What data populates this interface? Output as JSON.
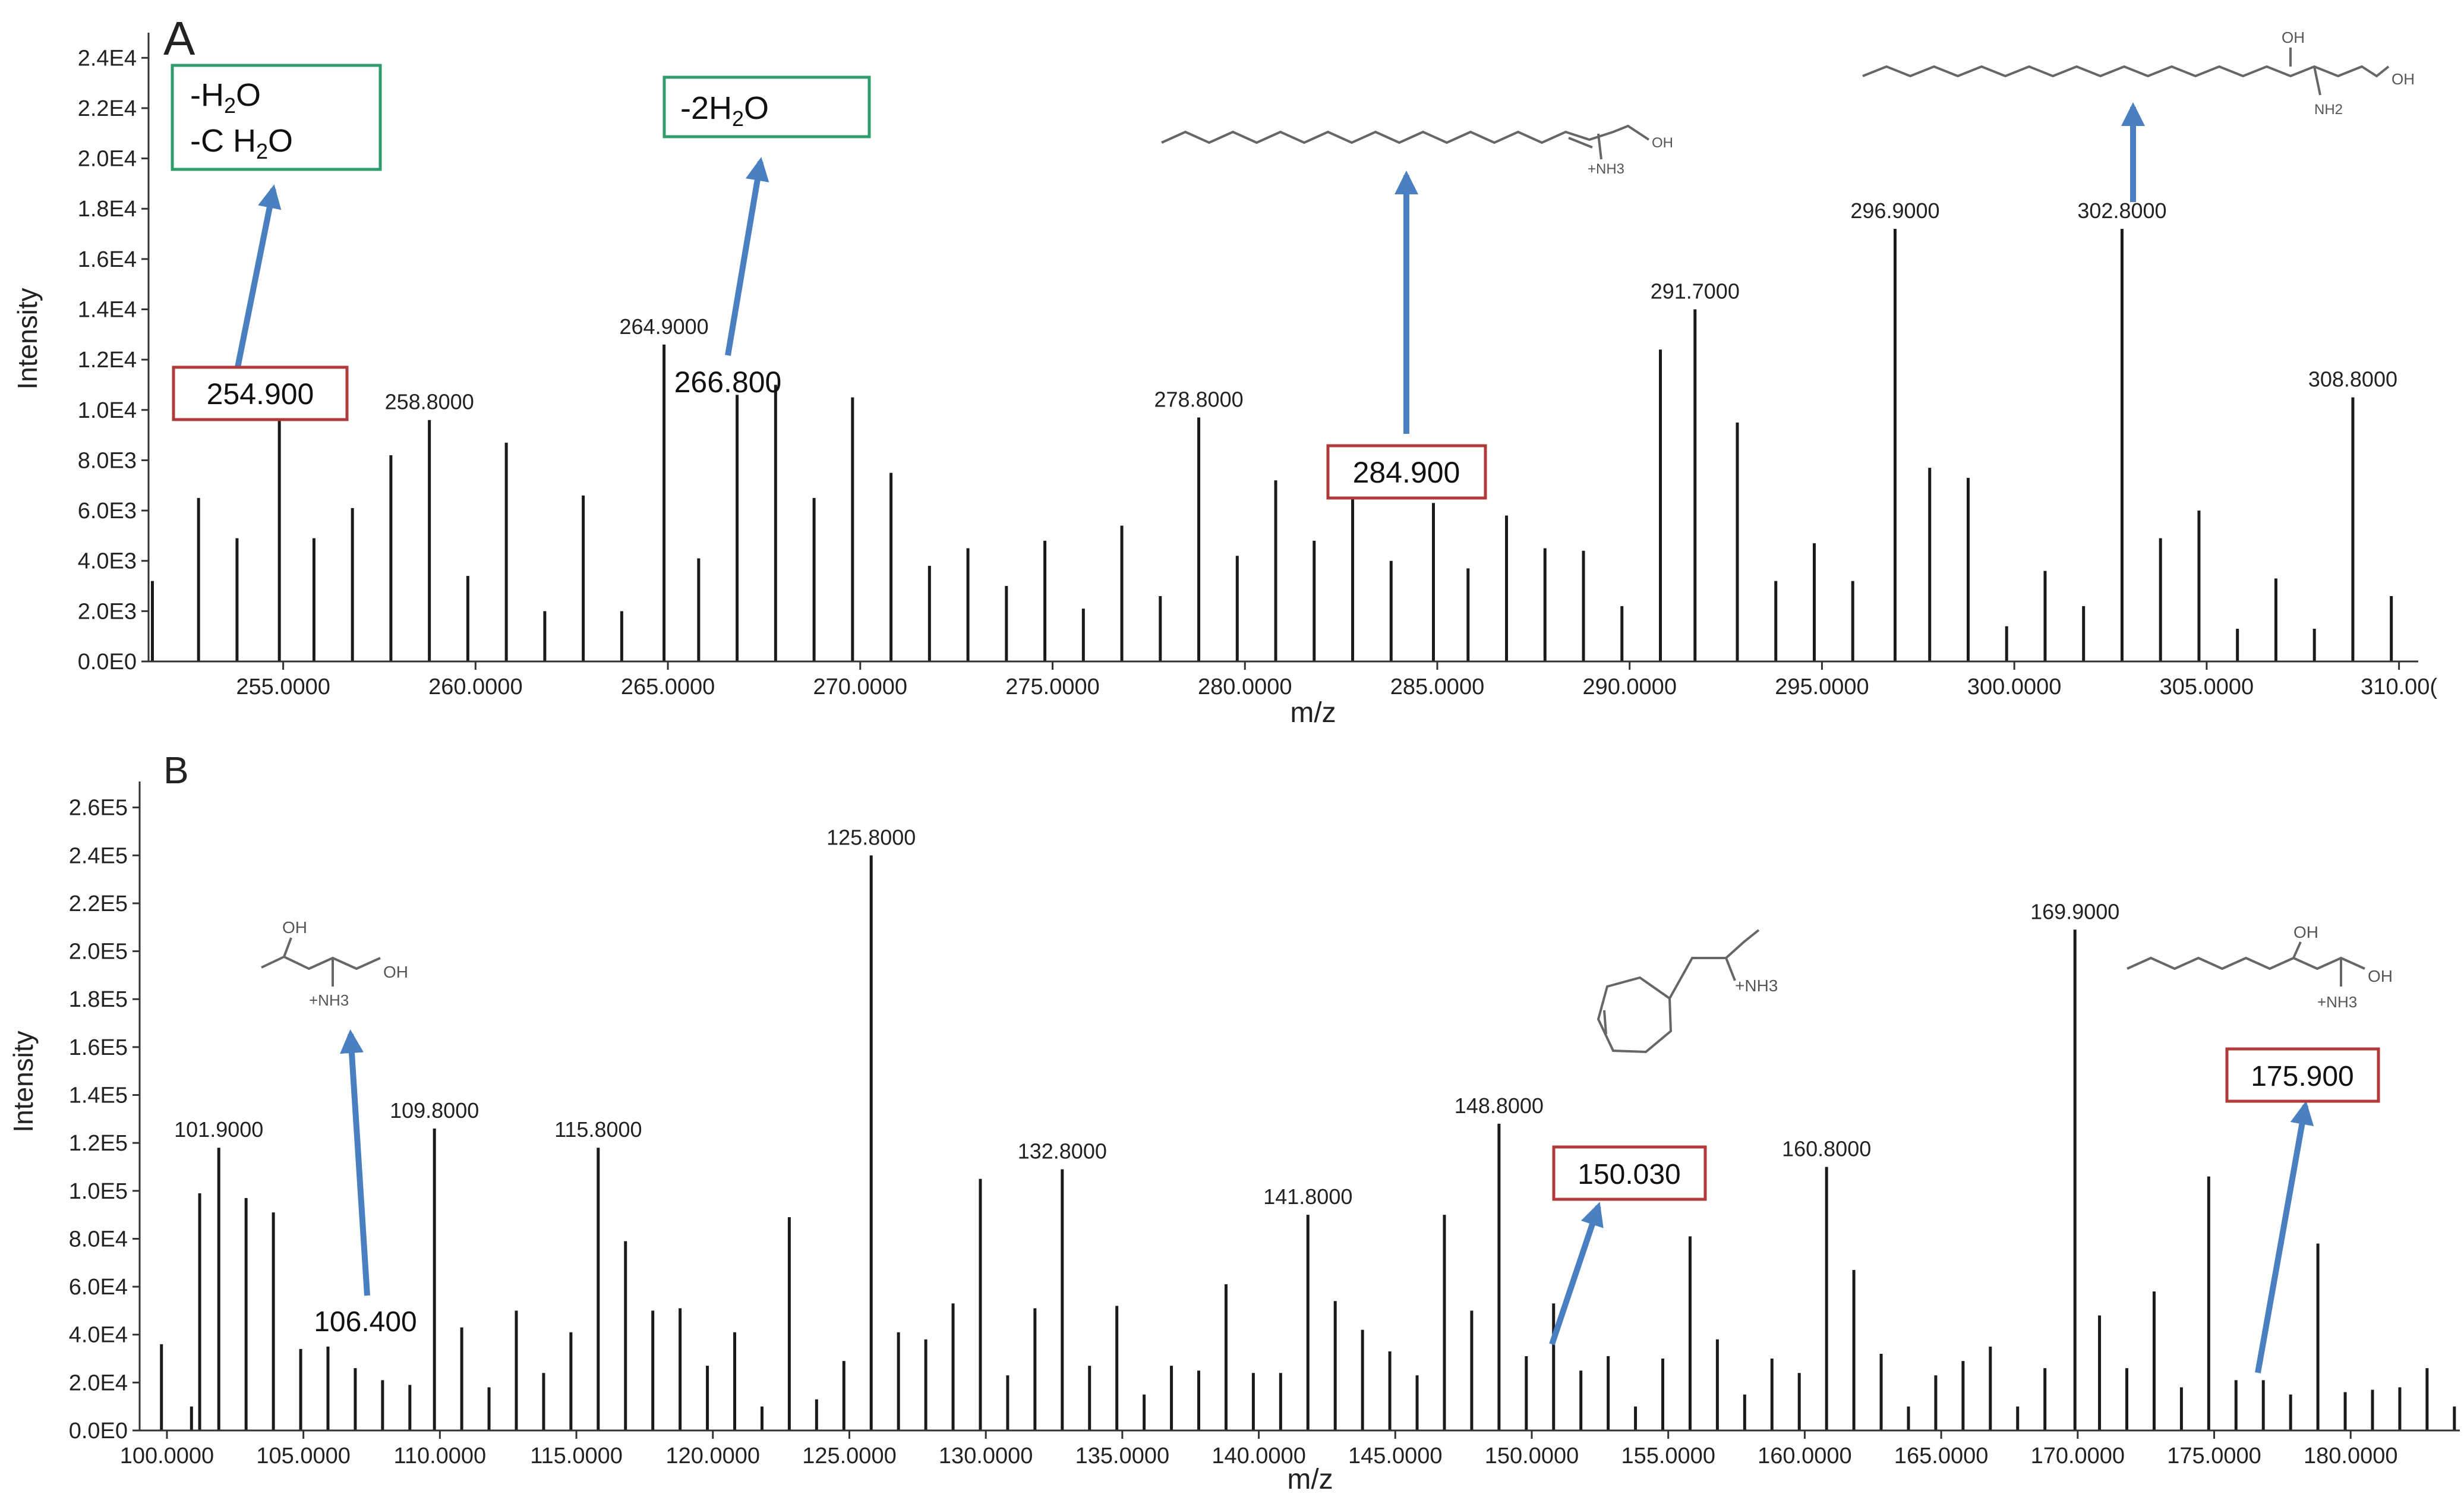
{
  "colors": {
    "axis": "#333333",
    "bar": "#1a1a1a",
    "arrow": "#4a7fc1",
    "loss_box": "#2e9c6b",
    "ion_box": "#b03a3a",
    "structure": "#666666"
  },
  "chart_data": [
    {
      "panel": "A",
      "type": "bar",
      "subtype": "mass-spectrum stick plot",
      "xlabel": "m/z",
      "ylabel": "Intensity",
      "xlim": [
        251.5,
        310.5
      ],
      "ylim": [
        0,
        24000
      ],
      "xticks": [
        255,
        260,
        265,
        270,
        275,
        280,
        285,
        290,
        295,
        300,
        305,
        310
      ],
      "xtick_labels": [
        "255.0000",
        "260.0000",
        "265.0000",
        "270.0000",
        "275.0000",
        "280.0000",
        "285.0000",
        "290.0000",
        "295.0000",
        "300.0000",
        "305.0000",
        "310.00("
      ],
      "yticks": [
        0,
        2000,
        4000,
        6000,
        8000,
        10000,
        12000,
        14000,
        16000,
        18000,
        20000,
        22000,
        24000
      ],
      "ytick_labels": [
        "0.0E0",
        "2.0E3",
        "4.0E3",
        "6.0E3",
        "8.0E3",
        "1.0E4",
        "1.2E4",
        "1.4E4",
        "1.6E4",
        "1.8E4",
        "2.0E4",
        "2.2E4",
        "2.4E4"
      ],
      "peaks": {
        "x": [
          251.6,
          252.8,
          253.8,
          254.9,
          255.8,
          256.8,
          257.8,
          258.8,
          259.8,
          260.8,
          261.8,
          262.8,
          263.8,
          264.9,
          265.8,
          266.8,
          267.8,
          268.8,
          269.8,
          270.8,
          271.8,
          272.8,
          273.8,
          274.8,
          275.8,
          276.8,
          277.8,
          278.8,
          279.8,
          280.8,
          281.8,
          282.8,
          283.8,
          284.9,
          285.8,
          286.8,
          287.8,
          288.8,
          289.8,
          290.8,
          291.7,
          292.8,
          293.8,
          294.8,
          295.8,
          296.9,
          297.8,
          298.8,
          299.8,
          300.8,
          301.8,
          302.8,
          303.8,
          304.8,
          305.8,
          306.8,
          307.8,
          308.8,
          309.8
        ],
        "y": [
          3200,
          6500,
          4900,
          9800,
          4900,
          6100,
          8200,
          9600,
          3400,
          8700,
          2000,
          6600,
          2000,
          12600,
          4100,
          10600,
          11000,
          6500,
          10500,
          7500,
          3800,
          4500,
          3000,
          4800,
          2100,
          5400,
          2600,
          9700,
          4200,
          7200,
          4800,
          6500,
          4000,
          6300,
          3700,
          5800,
          4500,
          4400,
          2200,
          12400,
          14000,
          9500,
          3200,
          4700,
          3200,
          17200,
          7700,
          7300,
          1400,
          3600,
          2200,
          17200,
          4900,
          6000,
          1300,
          3300,
          1300,
          10500,
          2600
        ]
      },
      "labeled_peaks": [
        {
          "x": 258.8,
          "y": 9600,
          "text": "258.8000"
        },
        {
          "x": 264.9,
          "y": 12600,
          "text": "264.9000"
        },
        {
          "x": 278.8,
          "y": 9700,
          "text": "278.8000"
        },
        {
          "x": 291.7,
          "y": 14000,
          "text": "291.7000"
        },
        {
          "x": 296.9,
          "y": 17200,
          "text": "296.9000"
        },
        {
          "x": 302.8,
          "y": 17200,
          "text": "302.8000"
        },
        {
          "x": 308.8,
          "y": 10500,
          "text": "308.8000"
        }
      ],
      "ion_boxes": [
        "254.900",
        "266.800",
        "284.900"
      ],
      "loss_boxes": [
        [
          "-H2O",
          "-C H2O"
        ],
        [
          "-2H2O"
        ]
      ],
      "structure_labels": {
        "hexadecenylamine": [
          "+NH3",
          "OH"
        ],
        "sphinganine": [
          "OH",
          "OH",
          "NH2"
        ]
      }
    },
    {
      "panel": "B",
      "type": "bar",
      "subtype": "mass-spectrum stick plot",
      "xlabel": "m/z",
      "ylabel": "Intensity",
      "xlim": [
        99,
        184
      ],
      "ylim": [
        0,
        260000
      ],
      "xticks": [
        100,
        105,
        110,
        115,
        120,
        125,
        130,
        135,
        140,
        145,
        150,
        155,
        160,
        165,
        170,
        175,
        180
      ],
      "xtick_labels": [
        "100.0000",
        "105.0000",
        "110.0000",
        "115.0000",
        "120.0000",
        "125.0000",
        "130.0000",
        "135.0000",
        "140.0000",
        "145.0000",
        "150.0000",
        "155.0000",
        "160.0000",
        "165.0000",
        "170.0000",
        "175.0000",
        "180.0000"
      ],
      "yticks": [
        0,
        20000,
        40000,
        60000,
        80000,
        100000,
        120000,
        140000,
        160000,
        180000,
        200000,
        220000,
        240000,
        260000
      ],
      "ytick_labels": [
        "0.0E0",
        "2.0E4",
        "4.0E4",
        "6.0E4",
        "8.0E4",
        "1.0E5",
        "1.2E5",
        "1.4E5",
        "1.6E5",
        "1.8E5",
        "2.0E5",
        "2.2E5",
        "2.4E5",
        "2.6E5"
      ],
      "peaks": {
        "x": [
          99.8,
          100.9,
          101.2,
          101.9,
          102.9,
          103.9,
          104.9,
          105.9,
          106.9,
          107.9,
          108.9,
          109.8,
          110.8,
          111.8,
          112.8,
          113.8,
          114.8,
          115.8,
          116.8,
          117.8,
          118.8,
          119.8,
          120.8,
          121.8,
          122.8,
          123.8,
          124.8,
          125.8,
          126.8,
          127.8,
          128.8,
          129.8,
          130.8,
          131.8,
          132.8,
          133.8,
          134.8,
          135.8,
          136.8,
          137.8,
          138.8,
          139.8,
          140.8,
          141.8,
          142.8,
          143.8,
          144.8,
          145.8,
          146.8,
          147.8,
          148.8,
          149.8,
          150.8,
          151.8,
          152.8,
          153.8,
          154.8,
          155.8,
          156.8,
          157.8,
          158.8,
          159.8,
          160.8,
          161.8,
          162.8,
          163.8,
          164.8,
          165.8,
          166.8,
          167.8,
          168.8,
          169.9,
          170.8,
          171.8,
          172.8,
          173.8,
          174.8,
          175.8,
          176.8,
          177.8,
          178.8,
          179.8,
          180.8,
          181.8,
          182.8,
          183.8
        ],
        "y": [
          36000,
          10000,
          99000,
          118000,
          97000,
          91000,
          34000,
          35000,
          26000,
          21000,
          19000,
          126000,
          43000,
          18000,
          50000,
          24000,
          41000,
          118000,
          79000,
          50000,
          51000,
          27000,
          41000,
          10000,
          89000,
          13000,
          29000,
          240000,
          41000,
          38000,
          53000,
          105000,
          23000,
          51000,
          109000,
          27000,
          52000,
          15000,
          27000,
          25000,
          61000,
          24000,
          24000,
          90000,
          54000,
          42000,
          33000,
          23000,
          90000,
          50000,
          128000,
          31000,
          53000,
          25000,
          31000,
          10000,
          30000,
          81000,
          38000,
          15000,
          30000,
          24000,
          110000,
          67000,
          32000,
          10000,
          23000,
          29000,
          35000,
          10000,
          26000,
          209000,
          48000,
          26000,
          58000,
          18000,
          106000,
          21000,
          21000,
          15000,
          78000,
          16000,
          17000,
          18000,
          26000,
          10000
        ]
      },
      "labeled_peaks": [
        {
          "x": 101.9,
          "y": 118000,
          "text": "101.9000"
        },
        {
          "x": 109.8,
          "y": 126000,
          "text": "109.8000"
        },
        {
          "x": 115.8,
          "y": 118000,
          "text": "115.8000"
        },
        {
          "x": 125.8,
          "y": 240000,
          "text": "125.8000"
        },
        {
          "x": 132.8,
          "y": 109000,
          "text": "132.8000"
        },
        {
          "x": 141.8,
          "y": 90000,
          "text": "141.8000"
        },
        {
          "x": 148.8,
          "y": 128000,
          "text": "148.8000"
        },
        {
          "x": 160.8,
          "y": 110000,
          "text": "160.8000"
        },
        {
          "x": 169.9,
          "y": 209000,
          "text": "169.9000"
        }
      ],
      "ion_boxes": [
        "106.400",
        "150.030",
        "175.900"
      ],
      "structure_labels": {
        "aminobutanediol": [
          "OH",
          "OH",
          "+NH3"
        ],
        "cycloheptenyl_amine": [
          "+NH3"
        ],
        "aminooctanediol": [
          "OH",
          "OH",
          "+NH3"
        ]
      }
    }
  ]
}
